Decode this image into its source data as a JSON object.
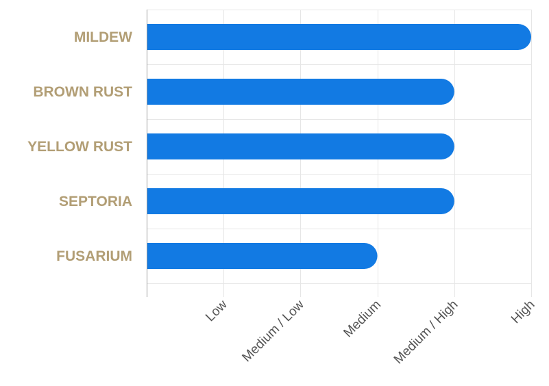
{
  "colors": {
    "bar": "#127ae3",
    "category_text": "#b29e75",
    "tick_text": "#555555",
    "grid": "#e6e6e6",
    "axis": "#9a9a9a"
  },
  "chart_data": {
    "type": "bar",
    "orientation": "horizontal",
    "categories": [
      "MILDEW",
      "BROWN RUST",
      "YELLOW RUST",
      "SEPTORIA",
      "FUSARIUM"
    ],
    "values": [
      5,
      4,
      4,
      4,
      3
    ],
    "x_ticks": [
      {
        "value": 1,
        "label": "Low"
      },
      {
        "value": 2,
        "label": "Medium / Low"
      },
      {
        "value": 3,
        "label": "Medium"
      },
      {
        "value": 4,
        "label": "Medium / High"
      },
      {
        "value": 5,
        "label": "High"
      }
    ],
    "xlim": [
      0,
      5
    ],
    "grid": true,
    "legend": false
  }
}
